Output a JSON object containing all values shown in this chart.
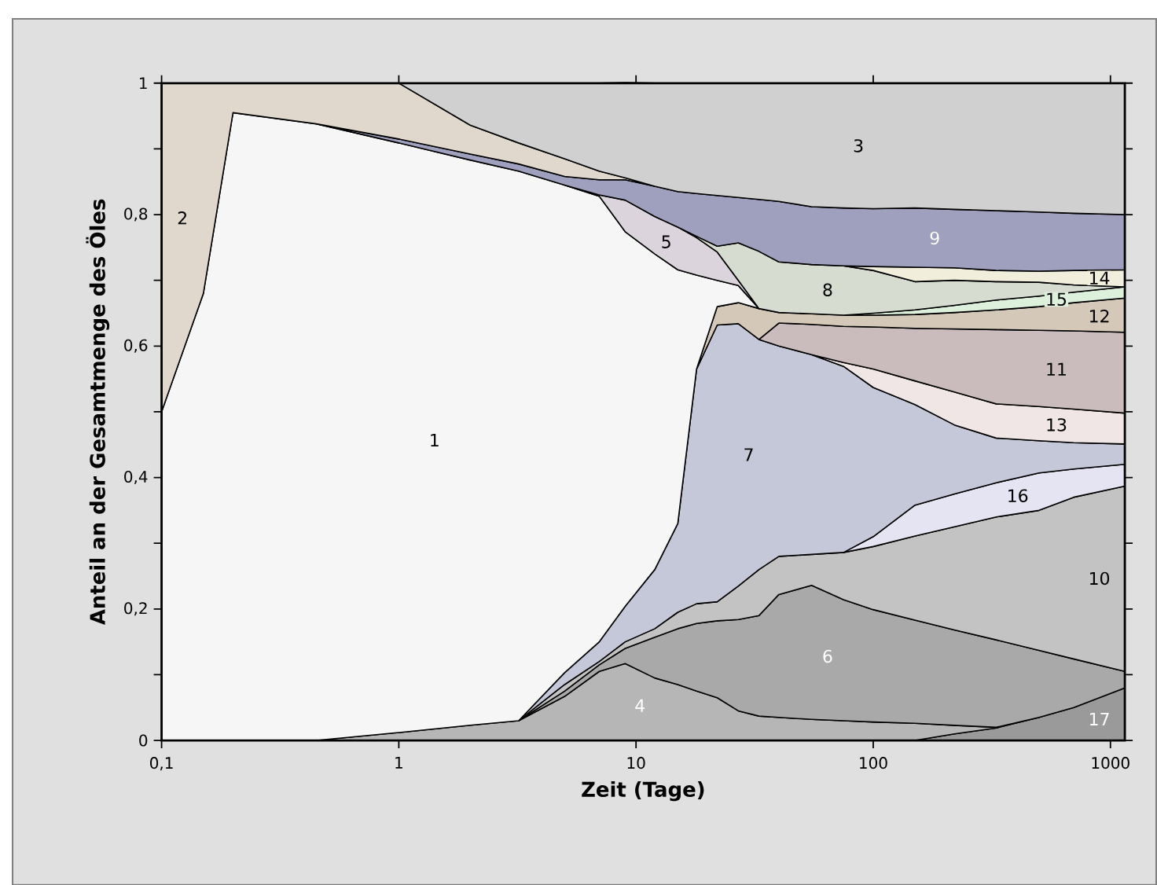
{
  "chart_data": {
    "type": "area",
    "stacked": true,
    "log": "x",
    "xlabel": "Zeit (Tage)",
    "ylabel": "Anteil an der Gesamtmenge des Öles",
    "x": [
      0.1,
      0.15,
      0.2,
      0.45,
      1,
      2,
      3.2,
      5,
      7,
      9,
      12,
      15,
      18,
      22,
      27,
      33,
      40,
      55,
      75,
      100,
      150,
      220,
      330,
      500,
      700,
      1150
    ],
    "xlim": [
      0.1,
      1150
    ],
    "xticks": [
      {
        "value": 0.1,
        "label": "0,1"
      },
      1,
      10,
      100,
      1000
    ],
    "ylim": [
      0,
      1
    ],
    "yticks": [
      0,
      {
        "value": 0.1,
        "label": null
      },
      {
        "value": 0.2,
        "label": "0,2"
      },
      {
        "value": 0.3,
        "label": null
      },
      {
        "value": 0.4,
        "label": "0,4"
      },
      {
        "value": 0.5,
        "label": null
      },
      {
        "value": 0.6,
        "label": "0,6"
      },
      {
        "value": 0.7,
        "label": null
      },
      {
        "value": 0.8,
        "label": "0,8"
      },
      {
        "value": 0.9,
        "label": null
      },
      1
    ],
    "series": [
      {
        "name": "17",
        "color": "#9a9a9a",
        "values": [
          null,
          null,
          null,
          null,
          null,
          null,
          null,
          null,
          null,
          null,
          null,
          null,
          null,
          null,
          null,
          null,
          null,
          null,
          null,
          null,
          0,
          0.01,
          0.019,
          0.035,
          0.05,
          0.08
        ]
      },
      {
        "name": "4",
        "color": "#b6b6b6",
        "values": [
          null,
          null,
          null,
          0,
          0.012,
          0.023,
          0.03,
          0.067,
          0.105,
          0.117,
          0.095,
          0.085,
          0.075,
          0.065,
          0.045,
          0.037,
          0.035,
          0.032,
          0.03,
          0.028,
          0.026,
          0.013,
          0.001,
          0,
          null,
          null
        ]
      },
      {
        "name": "6",
        "color": "#a9a9a9",
        "values": [
          null,
          null,
          null,
          null,
          null,
          null,
          0,
          0.008,
          0.01,
          0.023,
          0.062,
          0.085,
          0.103,
          0.117,
          0.139,
          0.153,
          0.187,
          0.204,
          0.184,
          0.171,
          0.157,
          0.145,
          0.133,
          0.102,
          0.074,
          0.025
        ]
      },
      {
        "name": "10",
        "color": "#c3c3c3",
        "values": [
          null,
          null,
          null,
          null,
          null,
          null,
          0,
          0.01,
          0.005,
          0.01,
          0.013,
          0.025,
          0.03,
          0.029,
          0.051,
          0.07,
          0.058,
          0.047,
          0.072,
          0.096,
          0.128,
          0.157,
          0.187,
          0.213,
          0.246,
          0.282
        ]
      },
      {
        "name": "16",
        "color": "#e4e4f2",
        "values": [
          null,
          null,
          null,
          null,
          null,
          null,
          null,
          null,
          null,
          null,
          null,
          null,
          null,
          null,
          null,
          null,
          null,
          null,
          0,
          0.015,
          0.047,
          0.05,
          0.052,
          0.057,
          0.043,
          0.033
        ]
      },
      {
        "name": "7",
        "color": "#c4c8d8",
        "values": [
          null,
          null,
          null,
          null,
          null,
          null,
          0,
          0.018,
          0.03,
          0.054,
          0.09,
          0.135,
          0.357,
          0.421,
          0.399,
          0.35,
          0.32,
          0.304,
          0.283,
          0.227,
          0.153,
          0.105,
          0.068,
          0.049,
          0.04,
          0.031
        ]
      },
      {
        "name": "13",
        "color": "#f0e6e6",
        "values": [
          null,
          null,
          null,
          null,
          null,
          null,
          null,
          null,
          null,
          null,
          null,
          null,
          null,
          null,
          null,
          null,
          null,
          0,
          0.006,
          0.028,
          0.036,
          0.05,
          0.052,
          0.052,
          0.051,
          0.047
        ]
      },
      {
        "name": "11",
        "color": "#cabcbc",
        "values": [
          null,
          null,
          null,
          null,
          null,
          null,
          null,
          null,
          null,
          null,
          null,
          null,
          null,
          null,
          null,
          0,
          0.035,
          0.046,
          0.055,
          0.064,
          0.08,
          0.096,
          0.113,
          0.116,
          0.119,
          0.123
        ]
      },
      {
        "name": "12",
        "color": "#d4c8b8",
        "values": [
          null,
          null,
          null,
          null,
          null,
          null,
          null,
          null,
          null,
          null,
          null,
          null,
          0,
          0.028,
          0.032,
          0.047,
          0.016,
          0.016,
          0.017,
          0.018,
          0.021,
          0.025,
          0.03,
          0.036,
          0.043,
          0.052
        ]
      },
      {
        "name": "15",
        "color": "#dcf0dc",
        "values": [
          null,
          null,
          null,
          null,
          null,
          null,
          null,
          null,
          null,
          null,
          null,
          null,
          null,
          null,
          null,
          null,
          null,
          null,
          0,
          0.003,
          0.007,
          0.011,
          0.015,
          0.016,
          0.016,
          0.017
        ]
      },
      {
        "name": "1",
        "color": "#f6f6f6",
        "values": [
          0.5,
          0.68,
          0.955,
          0.938,
          0.897,
          0.86,
          0.836,
          0.742,
          0.678,
          0.57,
          0.48,
          0.386,
          0.143,
          0.04,
          0.026,
          0,
          null,
          null,
          null,
          null,
          null,
          null,
          null,
          null,
          null,
          null
        ]
      },
      {
        "name": "5",
        "color": "#dcd4dc",
        "values": [
          null,
          null,
          null,
          null,
          null,
          null,
          null,
          0,
          0.002,
          0.048,
          0.057,
          0.065,
          0.057,
          0.043,
          0.008,
          0,
          null,
          null,
          null,
          null,
          null,
          null,
          null,
          null,
          null,
          null
        ]
      },
      {
        "name": "8",
        "color": "#d6dcd0",
        "values": [
          null,
          null,
          null,
          null,
          null,
          null,
          null,
          null,
          null,
          null,
          null,
          0,
          0.002,
          0.009,
          0.057,
          0.087,
          0.077,
          0.075,
          0.075,
          0.065,
          0.043,
          0.038,
          0.028,
          0.021,
          0.011,
          0
        ]
      },
      {
        "name": "14",
        "color": "#f2eedc",
        "values": [
          null,
          null,
          null,
          null,
          null,
          null,
          null,
          null,
          null,
          null,
          null,
          null,
          null,
          null,
          null,
          null,
          null,
          null,
          0,
          0.006,
          0.022,
          0.019,
          0.017,
          0.017,
          0.022,
          0.026
        ]
      },
      {
        "name": "9",
        "color": "#9ea0be",
        "values": [
          null,
          null,
          null,
          0,
          0.006,
          0.009,
          0.011,
          0.013,
          0.023,
          0.031,
          0.046,
          0.054,
          0.065,
          0.077,
          0.069,
          0.079,
          0.092,
          0.088,
          0.088,
          0.088,
          0.09,
          0.089,
          0.091,
          0.09,
          0.087,
          0.084
        ]
      },
      {
        "name": "2",
        "color": "#e0d8cc",
        "values": [
          0.5,
          0.32,
          0.045,
          0.062,
          0.085,
          0.044,
          0.032,
          0.027,
          0.013,
          0.003,
          0,
          null,
          null,
          null,
          null,
          null,
          null,
          null,
          null,
          null,
          null,
          null,
          null,
          null,
          null,
          null
        ]
      },
      {
        "name": "3",
        "color": "#d0d0d0",
        "values": [
          null,
          null,
          null,
          null,
          0,
          0.064,
          0.091,
          0.115,
          0.134,
          0.145,
          0.157,
          0.165,
          0.168,
          0.171,
          0.174,
          0.177,
          0.18,
          0.188,
          0.19,
          0.191,
          0.19,
          0.192,
          0.194,
          0.196,
          0.198,
          0.2
        ]
      }
    ]
  }
}
